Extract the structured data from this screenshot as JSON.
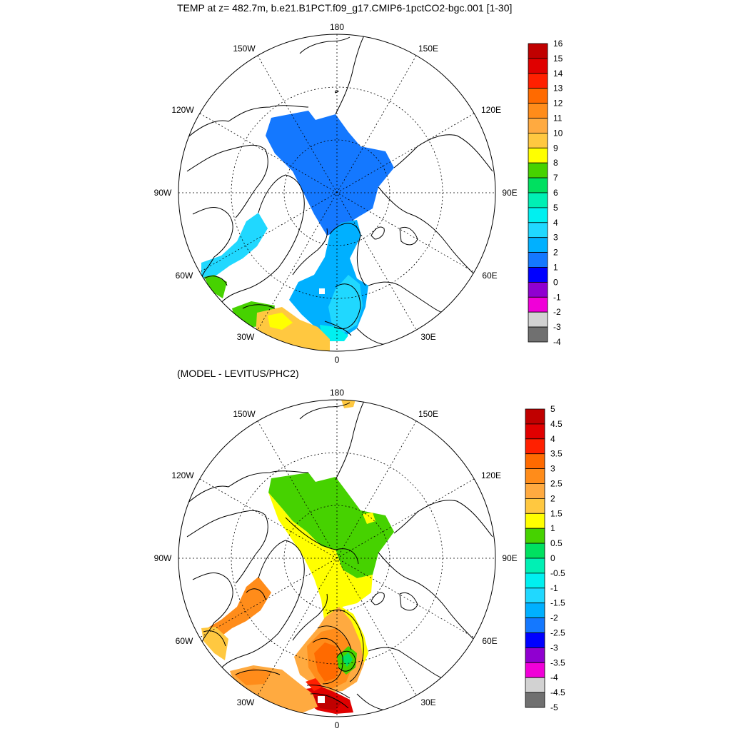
{
  "titles": {
    "top": "TEMP at z= 482.7m, b.e21.B1PCT.f09_g17.CMIP6-1pctCO2-bgc.001 [1-30]",
    "bottom": "(MODEL - LEVITUS/PHC2)"
  },
  "longitude_labels": [
    "180",
    "150E",
    "120E",
    "90E",
    "60E",
    "30E",
    "0",
    "30W",
    "60W",
    "90W",
    "120W",
    "150W"
  ],
  "top_colorbar": {
    "labels": [
      "16",
      "15",
      "14",
      "13",
      "12",
      "11",
      "10",
      "9",
      "8",
      "7",
      "6",
      "5",
      "4",
      "3",
      "2",
      "1",
      "0",
      "-1",
      "-2",
      "-3",
      "-4"
    ],
    "colors": [
      "#c00000",
      "#e00000",
      "#ff2000",
      "#ff6a00",
      "#ff8c1a",
      "#ffaa40",
      "#ffc840",
      "#ffff00",
      "#46d200",
      "#00e060",
      "#00f0b4",
      "#00f0f0",
      "#20d8ff",
      "#00b0ff",
      "#1478ff",
      "#0000ff",
      "#9000d0",
      "#f000d8",
      "#d2d2d2",
      "#707070"
    ]
  },
  "bottom_colorbar": {
    "labels": [
      "5",
      "4.5",
      "4",
      "3.5",
      "3",
      "2.5",
      "2",
      "1.5",
      "1",
      "0.5",
      "0",
      "-0.5",
      "-1",
      "-1.5",
      "-2",
      "-2.5",
      "-3",
      "-3.5",
      "-4",
      "-4.5",
      "-5"
    ],
    "colors": [
      "#c00000",
      "#e00000",
      "#ff2000",
      "#ff6a00",
      "#ff8c1a",
      "#ffaa40",
      "#ffc840",
      "#ffff00",
      "#46d200",
      "#00e060",
      "#00f0b4",
      "#00f0f0",
      "#20d8ff",
      "#00b0ff",
      "#1478ff",
      "#0000ff",
      "#9000d0",
      "#f000d8",
      "#d2d2d2",
      "#707070"
    ]
  }
}
